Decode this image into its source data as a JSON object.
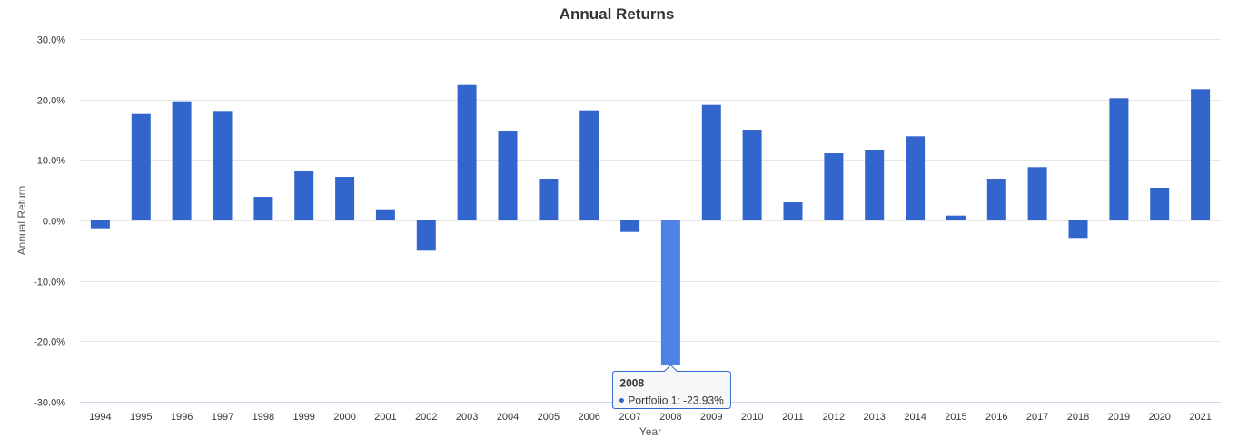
{
  "chart_data": {
    "type": "bar",
    "title": "Annual Returns",
    "xlabel": "Year",
    "ylabel": "Annual Return",
    "ylim": [
      -30,
      30
    ],
    "y_ticks": [
      "30.0%",
      "20.0%",
      "10.0%",
      "0.0%",
      "-10.0%",
      "-20.0%",
      "-30.0%"
    ],
    "y_tick_values": [
      30,
      20,
      10,
      0,
      -10,
      -20,
      -30
    ],
    "grid": true,
    "categories": [
      "1994",
      "1995",
      "1996",
      "1997",
      "1998",
      "1999",
      "2000",
      "2001",
      "2002",
      "2003",
      "2004",
      "2005",
      "2006",
      "2007",
      "2008",
      "2009",
      "2010",
      "2011",
      "2012",
      "2013",
      "2014",
      "2015",
      "2016",
      "2017",
      "2018",
      "2019",
      "2020",
      "2021"
    ],
    "series": [
      {
        "name": "Portfolio 1",
        "color": "#3366cc",
        "values": [
          -1.3,
          17.6,
          19.7,
          18.1,
          3.9,
          8.1,
          7.2,
          1.7,
          -5.0,
          22.4,
          14.7,
          6.9,
          18.2,
          -1.9,
          -23.93,
          19.1,
          15.0,
          3.0,
          11.1,
          11.7,
          13.9,
          0.8,
          6.9,
          8.8,
          -2.9,
          20.2,
          5.4,
          21.7
        ]
      }
    ],
    "highlight": {
      "index": 14,
      "color": "#4f82e6"
    },
    "tooltip": {
      "title": "2008",
      "text": "Portfolio 1: -23.93%",
      "border_color": "#3366cc"
    }
  }
}
